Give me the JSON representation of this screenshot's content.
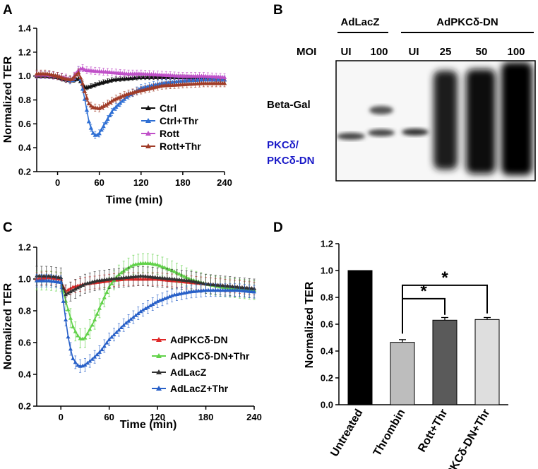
{
  "panels": {
    "A": "A",
    "B": "B",
    "C": "C",
    "D": "D"
  },
  "colors": {
    "ctrl": "#111111",
    "ctrl_thr": "#2e6fd4",
    "rott": "#c050c8",
    "rott_thr": "#a03c28",
    "adpkc": "#e02828",
    "adpkc_thr": "#62d24a",
    "adlacz": "#333333",
    "adlacz_thr": "#2860c8",
    "bar_untreated": "#000000",
    "bar_thrombin": "#bdbdbd",
    "bar_rott": "#5a5a5a",
    "bar_pkc": "#dedede"
  },
  "panel_b": {
    "group1": "AdLacZ",
    "group2": "AdPKCδ-DN",
    "moi_label": "MOI",
    "lanes": [
      "UI",
      "100",
      "UI",
      "25",
      "50",
      "100"
    ],
    "band1": "Beta-Gal",
    "band2_line1": "PKCδ/",
    "band2_line2": "PKCδ-DN"
  },
  "chart_data": [
    {
      "id": "A",
      "type": "line",
      "title": "",
      "xlabel": "Time (min)",
      "ylabel": "Normalized TER",
      "xlim": [
        -30,
        240
      ],
      "ylim": [
        0.2,
        1.4
      ],
      "xticks": [
        0,
        60,
        120,
        180,
        240
      ],
      "yticks": [
        0.2,
        0.4,
        0.6,
        0.8,
        1.0,
        1.2,
        1.4
      ],
      "xtick_labels": [
        "0",
        "60",
        "120",
        "180",
        "240"
      ],
      "ytick_labels": [
        "0.2",
        "0.4",
        "0.6",
        "0.8",
        "1.0",
        "1.2",
        "1.4"
      ],
      "legend_position": "center-right",
      "series": [
        {
          "name": "Ctrl",
          "color_key": "ctrl",
          "x": [
            -30,
            -15,
            0,
            10,
            20,
            30,
            40,
            60,
            80,
            100,
            120,
            150,
            180,
            210,
            240
          ],
          "y": [
            1.0,
            1.0,
            0.99,
            0.97,
            0.96,
            0.98,
            0.9,
            0.94,
            0.97,
            0.98,
            0.99,
            0.99,
            0.99,
            0.98,
            0.97
          ],
          "err": 0.02
        },
        {
          "name": "Ctrl+Thr",
          "color_key": "ctrl_thr",
          "x": [
            -30,
            -15,
            0,
            10,
            20,
            25,
            30,
            35,
            40,
            45,
            50,
            55,
            60,
            70,
            80,
            100,
            120,
            150,
            180,
            210,
            240
          ],
          "y": [
            1.01,
            1.01,
            1.0,
            0.98,
            0.96,
            0.99,
            1.05,
            0.92,
            0.78,
            0.62,
            0.53,
            0.5,
            0.52,
            0.62,
            0.72,
            0.83,
            0.9,
            0.94,
            0.96,
            0.97,
            0.97
          ],
          "err": 0.03
        },
        {
          "name": "Rott",
          "color_key": "rott",
          "x": [
            -30,
            -15,
            0,
            10,
            20,
            30,
            35,
            40,
            60,
            80,
            100,
            120,
            150,
            180,
            210,
            240
          ],
          "y": [
            1.01,
            1.01,
            1.0,
            0.99,
            0.97,
            1.05,
            1.07,
            1.05,
            1.04,
            1.03,
            1.02,
            1.02,
            1.01,
            1.0,
            1.0,
            0.99
          ],
          "err": 0.03
        },
        {
          "name": "Rott+Thr",
          "color_key": "rott_thr",
          "x": [
            -30,
            -15,
            0,
            10,
            20,
            30,
            35,
            40,
            45,
            50,
            60,
            70,
            80,
            100,
            120,
            150,
            180,
            210,
            240
          ],
          "y": [
            1.02,
            1.02,
            1.0,
            0.98,
            0.97,
            1.03,
            0.96,
            0.85,
            0.77,
            0.74,
            0.73,
            0.76,
            0.8,
            0.85,
            0.88,
            0.92,
            0.93,
            0.94,
            0.94
          ],
          "err": 0.03
        }
      ]
    },
    {
      "id": "C",
      "type": "line",
      "title": "",
      "xlabel": "Time (min)",
      "ylabel": "Normalized TER",
      "xlim": [
        -30,
        240
      ],
      "ylim": [
        0.2,
        1.2
      ],
      "xticks": [
        0,
        60,
        120,
        180,
        240
      ],
      "yticks": [
        0.2,
        0.4,
        0.6,
        0.8,
        1.0,
        1.2
      ],
      "xtick_labels": [
        "0",
        "60",
        "120",
        "180",
        "240"
      ],
      "ytick_labels": [
        "0.2",
        "0.4",
        "0.6",
        "0.8",
        "1.0",
        "1.2"
      ],
      "legend_position": "bottom-center",
      "series": [
        {
          "name": "AdPKCδ-DN",
          "color_key": "adpkc",
          "x": [
            -30,
            -15,
            0,
            5,
            15,
            30,
            45,
            60,
            80,
            100,
            120,
            140,
            160,
            180,
            200,
            220,
            240
          ],
          "y": [
            1.0,
            1.01,
            1.0,
            0.92,
            0.95,
            0.97,
            0.98,
            0.99,
            1.0,
            1.0,
            1.0,
            0.99,
            0.98,
            0.97,
            0.96,
            0.95,
            0.94
          ],
          "err": 0.04
        },
        {
          "name": "AdPKCδ-DN+Thr",
          "color_key": "adpkc_thr",
          "x": [
            -30,
            -15,
            0,
            5,
            10,
            15,
            20,
            25,
            30,
            40,
            50,
            60,
            70,
            80,
            90,
            100,
            110,
            120,
            140,
            160,
            180,
            200,
            220,
            240
          ],
          "y": [
            0.99,
            0.99,
            0.98,
            0.88,
            0.79,
            0.7,
            0.65,
            0.62,
            0.63,
            0.72,
            0.84,
            0.95,
            1.02,
            1.06,
            1.09,
            1.1,
            1.1,
            1.09,
            1.05,
            1.0,
            0.97,
            0.95,
            0.94,
            0.93
          ],
          "err": 0.06
        },
        {
          "name": "AdLacZ",
          "color_key": "adlacz",
          "x": [
            -30,
            -15,
            0,
            5,
            15,
            30,
            45,
            60,
            80,
            100,
            120,
            140,
            160,
            180,
            200,
            220,
            240
          ],
          "y": [
            1.02,
            1.02,
            1.01,
            0.9,
            0.93,
            0.97,
            0.99,
            1.0,
            1.01,
            1.02,
            1.01,
            1.0,
            0.99,
            0.97,
            0.96,
            0.95,
            0.94
          ],
          "err": 0.06
        },
        {
          "name": "AdLacZ+Thr",
          "color_key": "adlacz_thr",
          "x": [
            -30,
            -15,
            0,
            5,
            10,
            15,
            20,
            25,
            30,
            40,
            50,
            60,
            80,
            100,
            120,
            140,
            160,
            180,
            200,
            220,
            240
          ],
          "y": [
            0.99,
            0.99,
            0.98,
            0.78,
            0.6,
            0.5,
            0.46,
            0.45,
            0.46,
            0.5,
            0.55,
            0.62,
            0.72,
            0.8,
            0.86,
            0.9,
            0.92,
            0.93,
            0.93,
            0.93,
            0.92
          ],
          "err": 0.04
        }
      ]
    },
    {
      "id": "D",
      "type": "bar",
      "title": "",
      "xlabel": "",
      "ylabel": "Normalized TER",
      "ylim": [
        0.0,
        1.2
      ],
      "yticks": [
        0.0,
        0.2,
        0.4,
        0.6,
        0.8,
        1.0,
        1.2
      ],
      "ytick_labels": [
        "0.0",
        "0.2",
        "0.4",
        "0.6",
        "0.8",
        "1.0",
        "1.2"
      ],
      "categories": [
        "Untreated",
        "Thrombin",
        "Rott+Thr",
        "PKCδ-DN+Thr"
      ],
      "values": [
        1.0,
        0.465,
        0.63,
        0.635
      ],
      "errors": [
        0.0,
        0.02,
        0.02,
        0.015
      ],
      "color_keys": [
        "bar_untreated",
        "bar_thrombin",
        "bar_rott",
        "bar_pkc"
      ],
      "annotations": [
        {
          "from": 1,
          "to": 2,
          "label": "*"
        },
        {
          "from": 1,
          "to": 3,
          "label": "*"
        }
      ]
    }
  ]
}
